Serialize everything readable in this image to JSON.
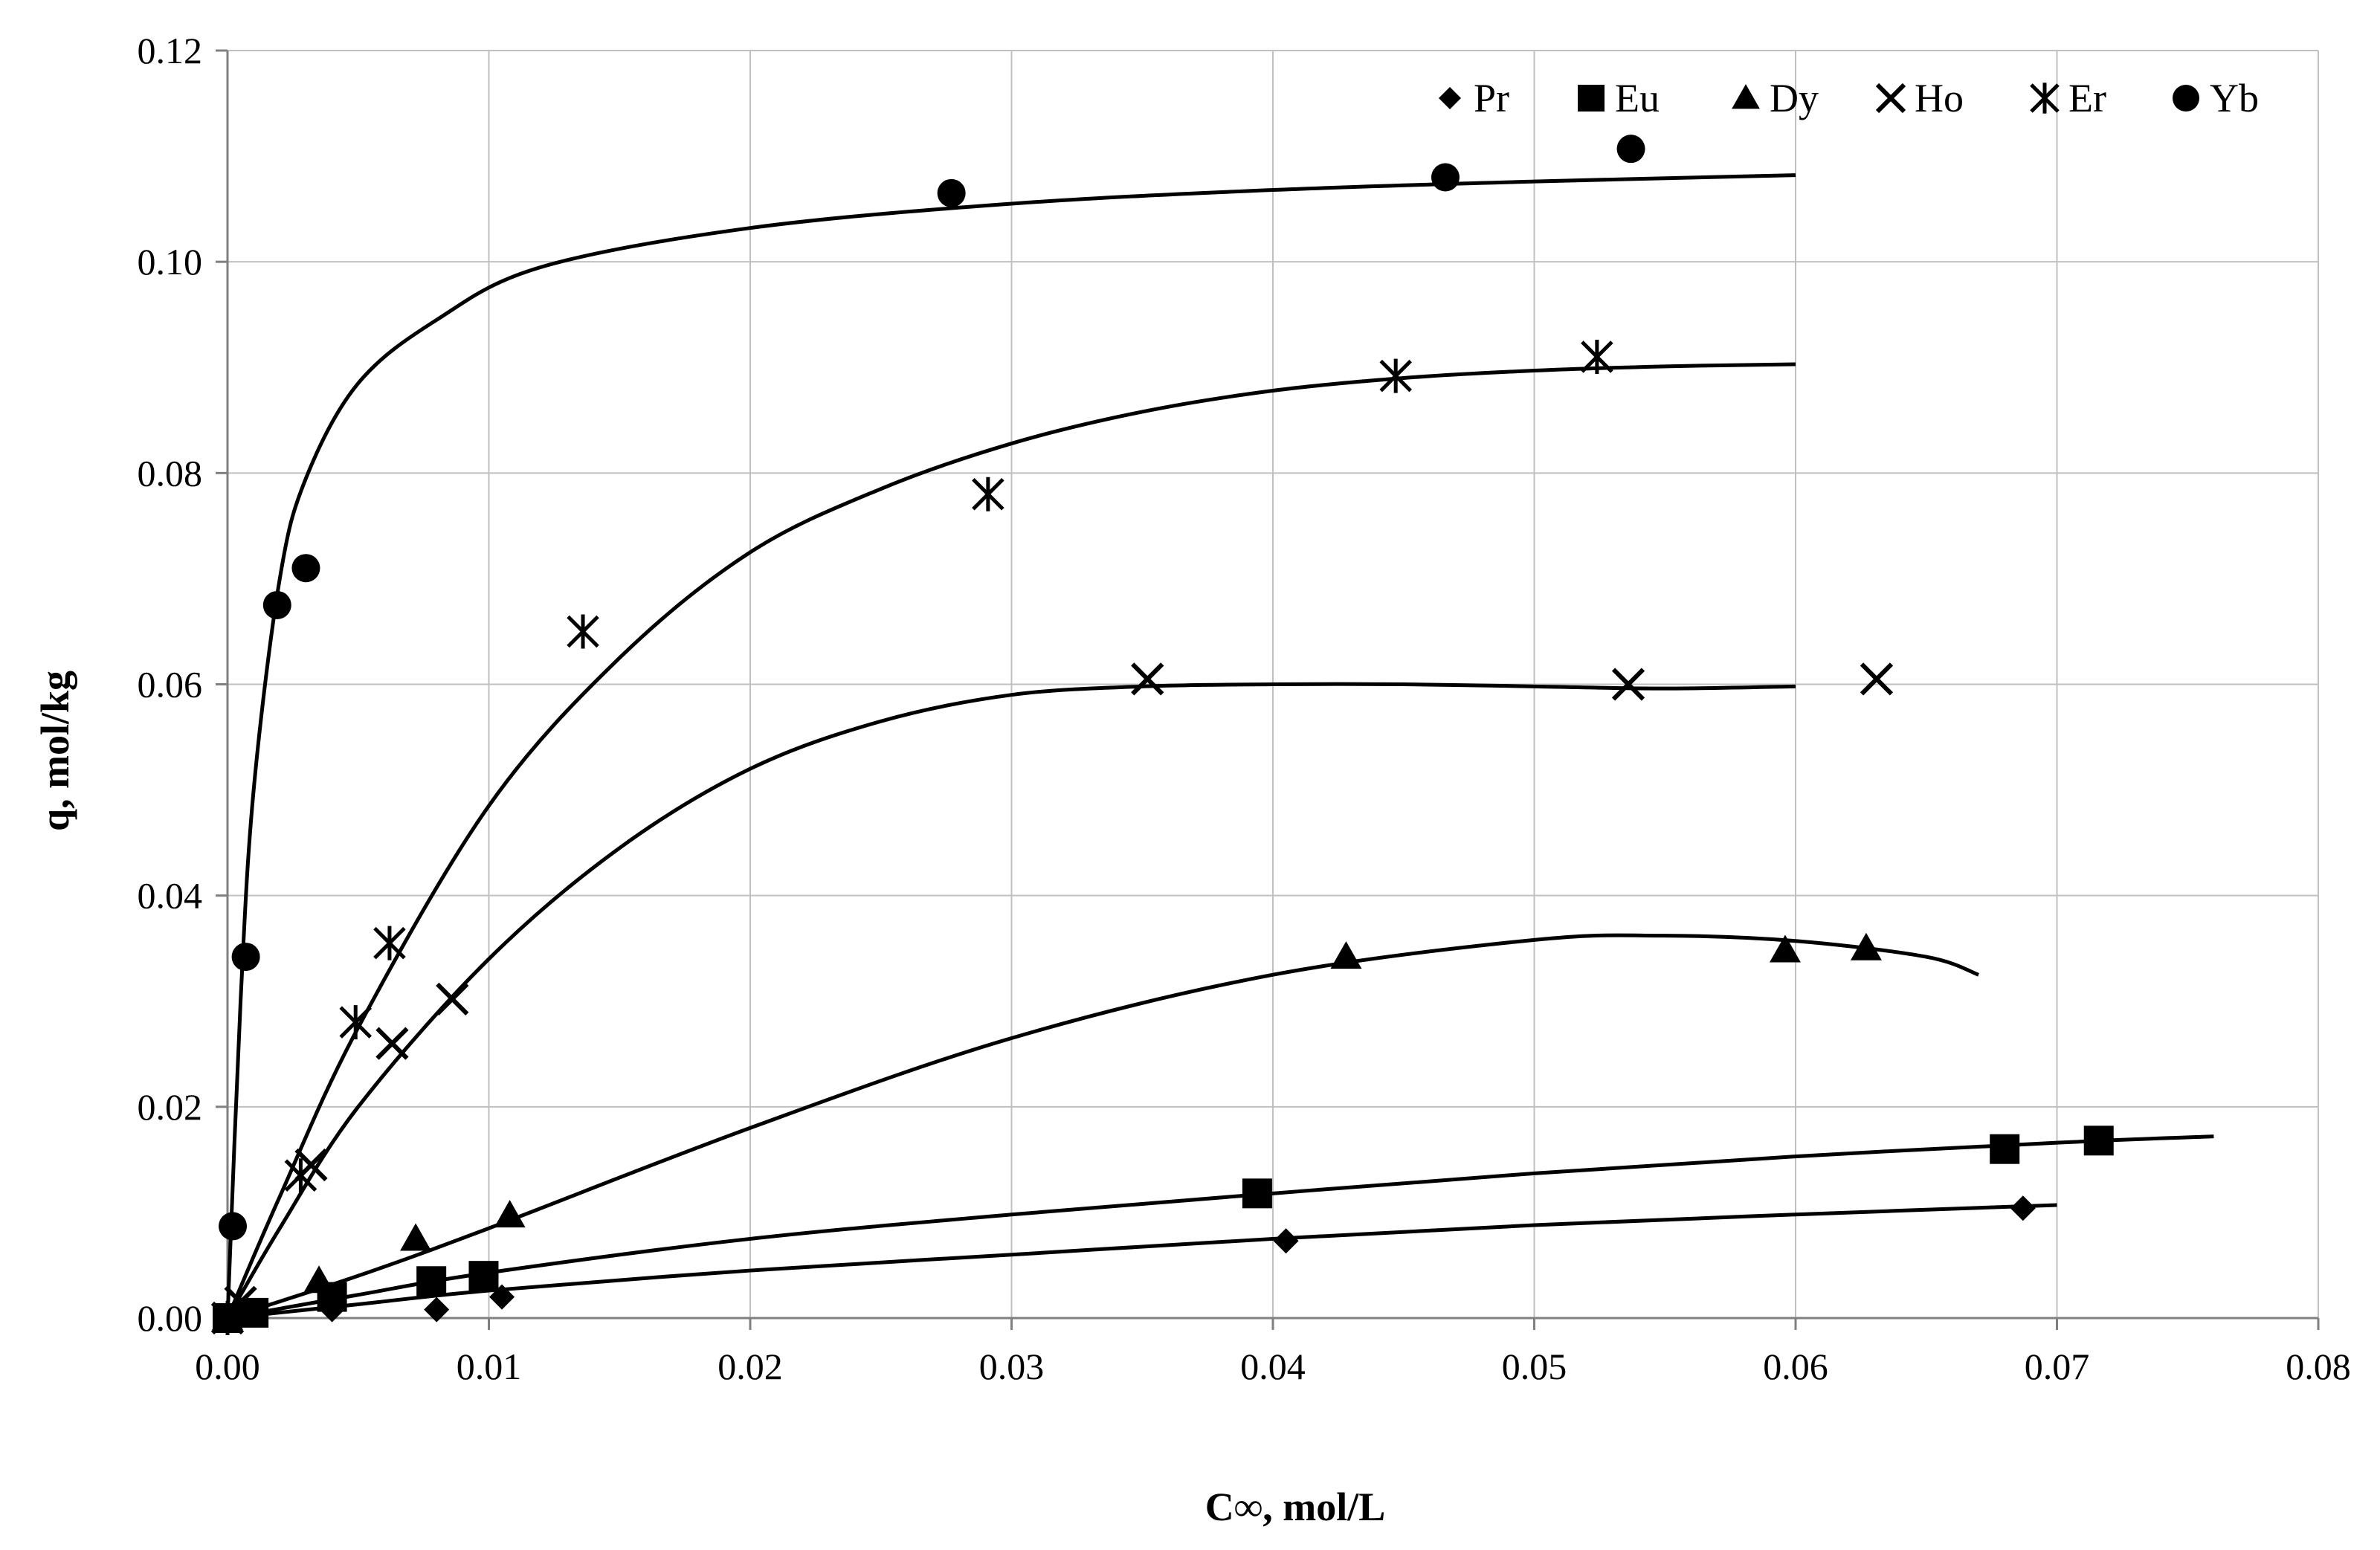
{
  "chart_data": {
    "type": "scatter",
    "title": "",
    "xlabel": "C∞, mol/L",
    "ylabel": "q, mol/kg",
    "xlim": [
      0,
      0.08
    ],
    "ylim": [
      0,
      0.12
    ],
    "grid": true,
    "legend_position": "top-right",
    "x_ticks": [
      0,
      0.01,
      0.02,
      0.03,
      0.04,
      0.05,
      0.06,
      0.07,
      0.08
    ],
    "x_tick_labels": [
      "0.00",
      "0.01",
      "0.02",
      "0.03",
      "0.04",
      "0.05",
      "0.06",
      "0.07",
      "0.08"
    ],
    "y_ticks": [
      0,
      0.02,
      0.04,
      0.06,
      0.08,
      0.1,
      0.12
    ],
    "y_tick_labels": [
      "0.00",
      "0.02",
      "0.04",
      "0.06",
      "0.08",
      "0.10",
      "0.12"
    ],
    "series": [
      {
        "name": "Pr",
        "marker": "diamond",
        "points": [
          [
            0,
            0
          ],
          [
            0.001,
            0.0003
          ],
          [
            0.004,
            0.0008
          ],
          [
            0.008,
            0.0008
          ],
          [
            0.0105,
            0.002
          ],
          [
            0.0405,
            0.0073
          ],
          [
            0.0687,
            0.0104
          ]
        ],
        "fit": [
          [
            0,
            0
          ],
          [
            0.005,
            0.0013
          ],
          [
            0.01,
            0.0026
          ],
          [
            0.02,
            0.0045
          ],
          [
            0.03,
            0.006
          ],
          [
            0.04,
            0.0075
          ],
          [
            0.05,
            0.0088
          ],
          [
            0.06,
            0.0098
          ],
          [
            0.07,
            0.0107
          ]
        ]
      },
      {
        "name": "Eu",
        "marker": "square",
        "points": [
          [
            0,
            0
          ],
          [
            0.001,
            0.0005
          ],
          [
            0.004,
            0.002
          ],
          [
            0.0078,
            0.0035
          ],
          [
            0.0098,
            0.004
          ],
          [
            0.0394,
            0.0118
          ],
          [
            0.068,
            0.016
          ],
          [
            0.0716,
            0.0168
          ]
        ],
        "fit": [
          [
            0,
            0
          ],
          [
            0.005,
            0.0022
          ],
          [
            0.01,
            0.0043
          ],
          [
            0.02,
            0.0075
          ],
          [
            0.03,
            0.0098
          ],
          [
            0.04,
            0.0118
          ],
          [
            0.05,
            0.0137
          ],
          [
            0.06,
            0.0153
          ],
          [
            0.07,
            0.0166
          ],
          [
            0.076,
            0.0172
          ]
        ]
      },
      {
        "name": "Dy",
        "marker": "triangle",
        "points": [
          [
            0,
            0
          ],
          [
            0.0035,
            0.0035
          ],
          [
            0.0072,
            0.0075
          ],
          [
            0.0108,
            0.0097
          ],
          [
            0.0428,
            0.0342
          ],
          [
            0.0596,
            0.0348
          ],
          [
            0.0627,
            0.035
          ]
        ],
        "fit": [
          [
            0,
            0
          ],
          [
            0.005,
            0.004
          ],
          [
            0.01,
            0.0085
          ],
          [
            0.02,
            0.018
          ],
          [
            0.03,
            0.0265
          ],
          [
            0.04,
            0.0325
          ],
          [
            0.05,
            0.0358
          ],
          [
            0.055,
            0.0362
          ],
          [
            0.06,
            0.0357
          ],
          [
            0.065,
            0.0342
          ],
          [
            0.067,
            0.0325
          ]
        ]
      },
      {
        "name": "Ho",
        "marker": "x",
        "points": [
          [
            0,
            0
          ],
          [
            0.0005,
            0.0015
          ],
          [
            0.0032,
            0.0145
          ],
          [
            0.0063,
            0.026
          ],
          [
            0.0086,
            0.0302
          ],
          [
            0.0352,
            0.0605
          ],
          [
            0.0536,
            0.06
          ],
          [
            0.0631,
            0.0605
          ]
        ],
        "fit": [
          [
            0,
            0
          ],
          [
            0.002,
            0.0085
          ],
          [
            0.005,
            0.02
          ],
          [
            0.01,
            0.034
          ],
          [
            0.015,
            0.0445
          ],
          [
            0.02,
            0.052
          ],
          [
            0.025,
            0.0565
          ],
          [
            0.03,
            0.059
          ],
          [
            0.035,
            0.0598
          ],
          [
            0.04,
            0.06
          ],
          [
            0.045,
            0.06
          ],
          [
            0.05,
            0.0598
          ],
          [
            0.055,
            0.0596
          ],
          [
            0.06,
            0.0598
          ]
        ]
      },
      {
        "name": "Er",
        "marker": "asterisk",
        "points": [
          [
            0,
            0
          ],
          [
            0.0028,
            0.0135
          ],
          [
            0.0049,
            0.028
          ],
          [
            0.0062,
            0.0355
          ],
          [
            0.0136,
            0.065
          ],
          [
            0.0291,
            0.078
          ],
          [
            0.0447,
            0.0892
          ],
          [
            0.0524,
            0.091
          ]
        ],
        "fit": [
          [
            0,
            0
          ],
          [
            0.002,
            0.0115
          ],
          [
            0.005,
            0.0275
          ],
          [
            0.01,
            0.0485
          ],
          [
            0.015,
            0.0625
          ],
          [
            0.02,
            0.0725
          ],
          [
            0.025,
            0.0785
          ],
          [
            0.03,
            0.0828
          ],
          [
            0.035,
            0.0858
          ],
          [
            0.04,
            0.0878
          ],
          [
            0.045,
            0.089
          ],
          [
            0.05,
            0.0897
          ],
          [
            0.055,
            0.0901
          ],
          [
            0.06,
            0.0903
          ]
        ]
      },
      {
        "name": "Yb",
        "marker": "circle",
        "points": [
          [
            0.0002,
            0.0087
          ],
          [
            0.0007,
            0.0342
          ],
          [
            0.0019,
            0.0675
          ],
          [
            0.003,
            0.071
          ],
          [
            0.0277,
            0.1065
          ],
          [
            0.0466,
            0.108
          ],
          [
            0.0537,
            0.1107
          ]
        ],
        "fit": [
          [
            0,
            0
          ],
          [
            0.0005,
            0.03
          ],
          [
            0.001,
            0.05
          ],
          [
            0.002,
            0.07
          ],
          [
            0.003,
            0.0795
          ],
          [
            0.005,
            0.0885
          ],
          [
            0.008,
            0.0945
          ],
          [
            0.012,
            0.0995
          ],
          [
            0.02,
            0.1032
          ],
          [
            0.03,
            0.1055
          ],
          [
            0.04,
            0.1068
          ],
          [
            0.05,
            0.1076
          ],
          [
            0.06,
            0.1082
          ]
        ]
      }
    ]
  }
}
